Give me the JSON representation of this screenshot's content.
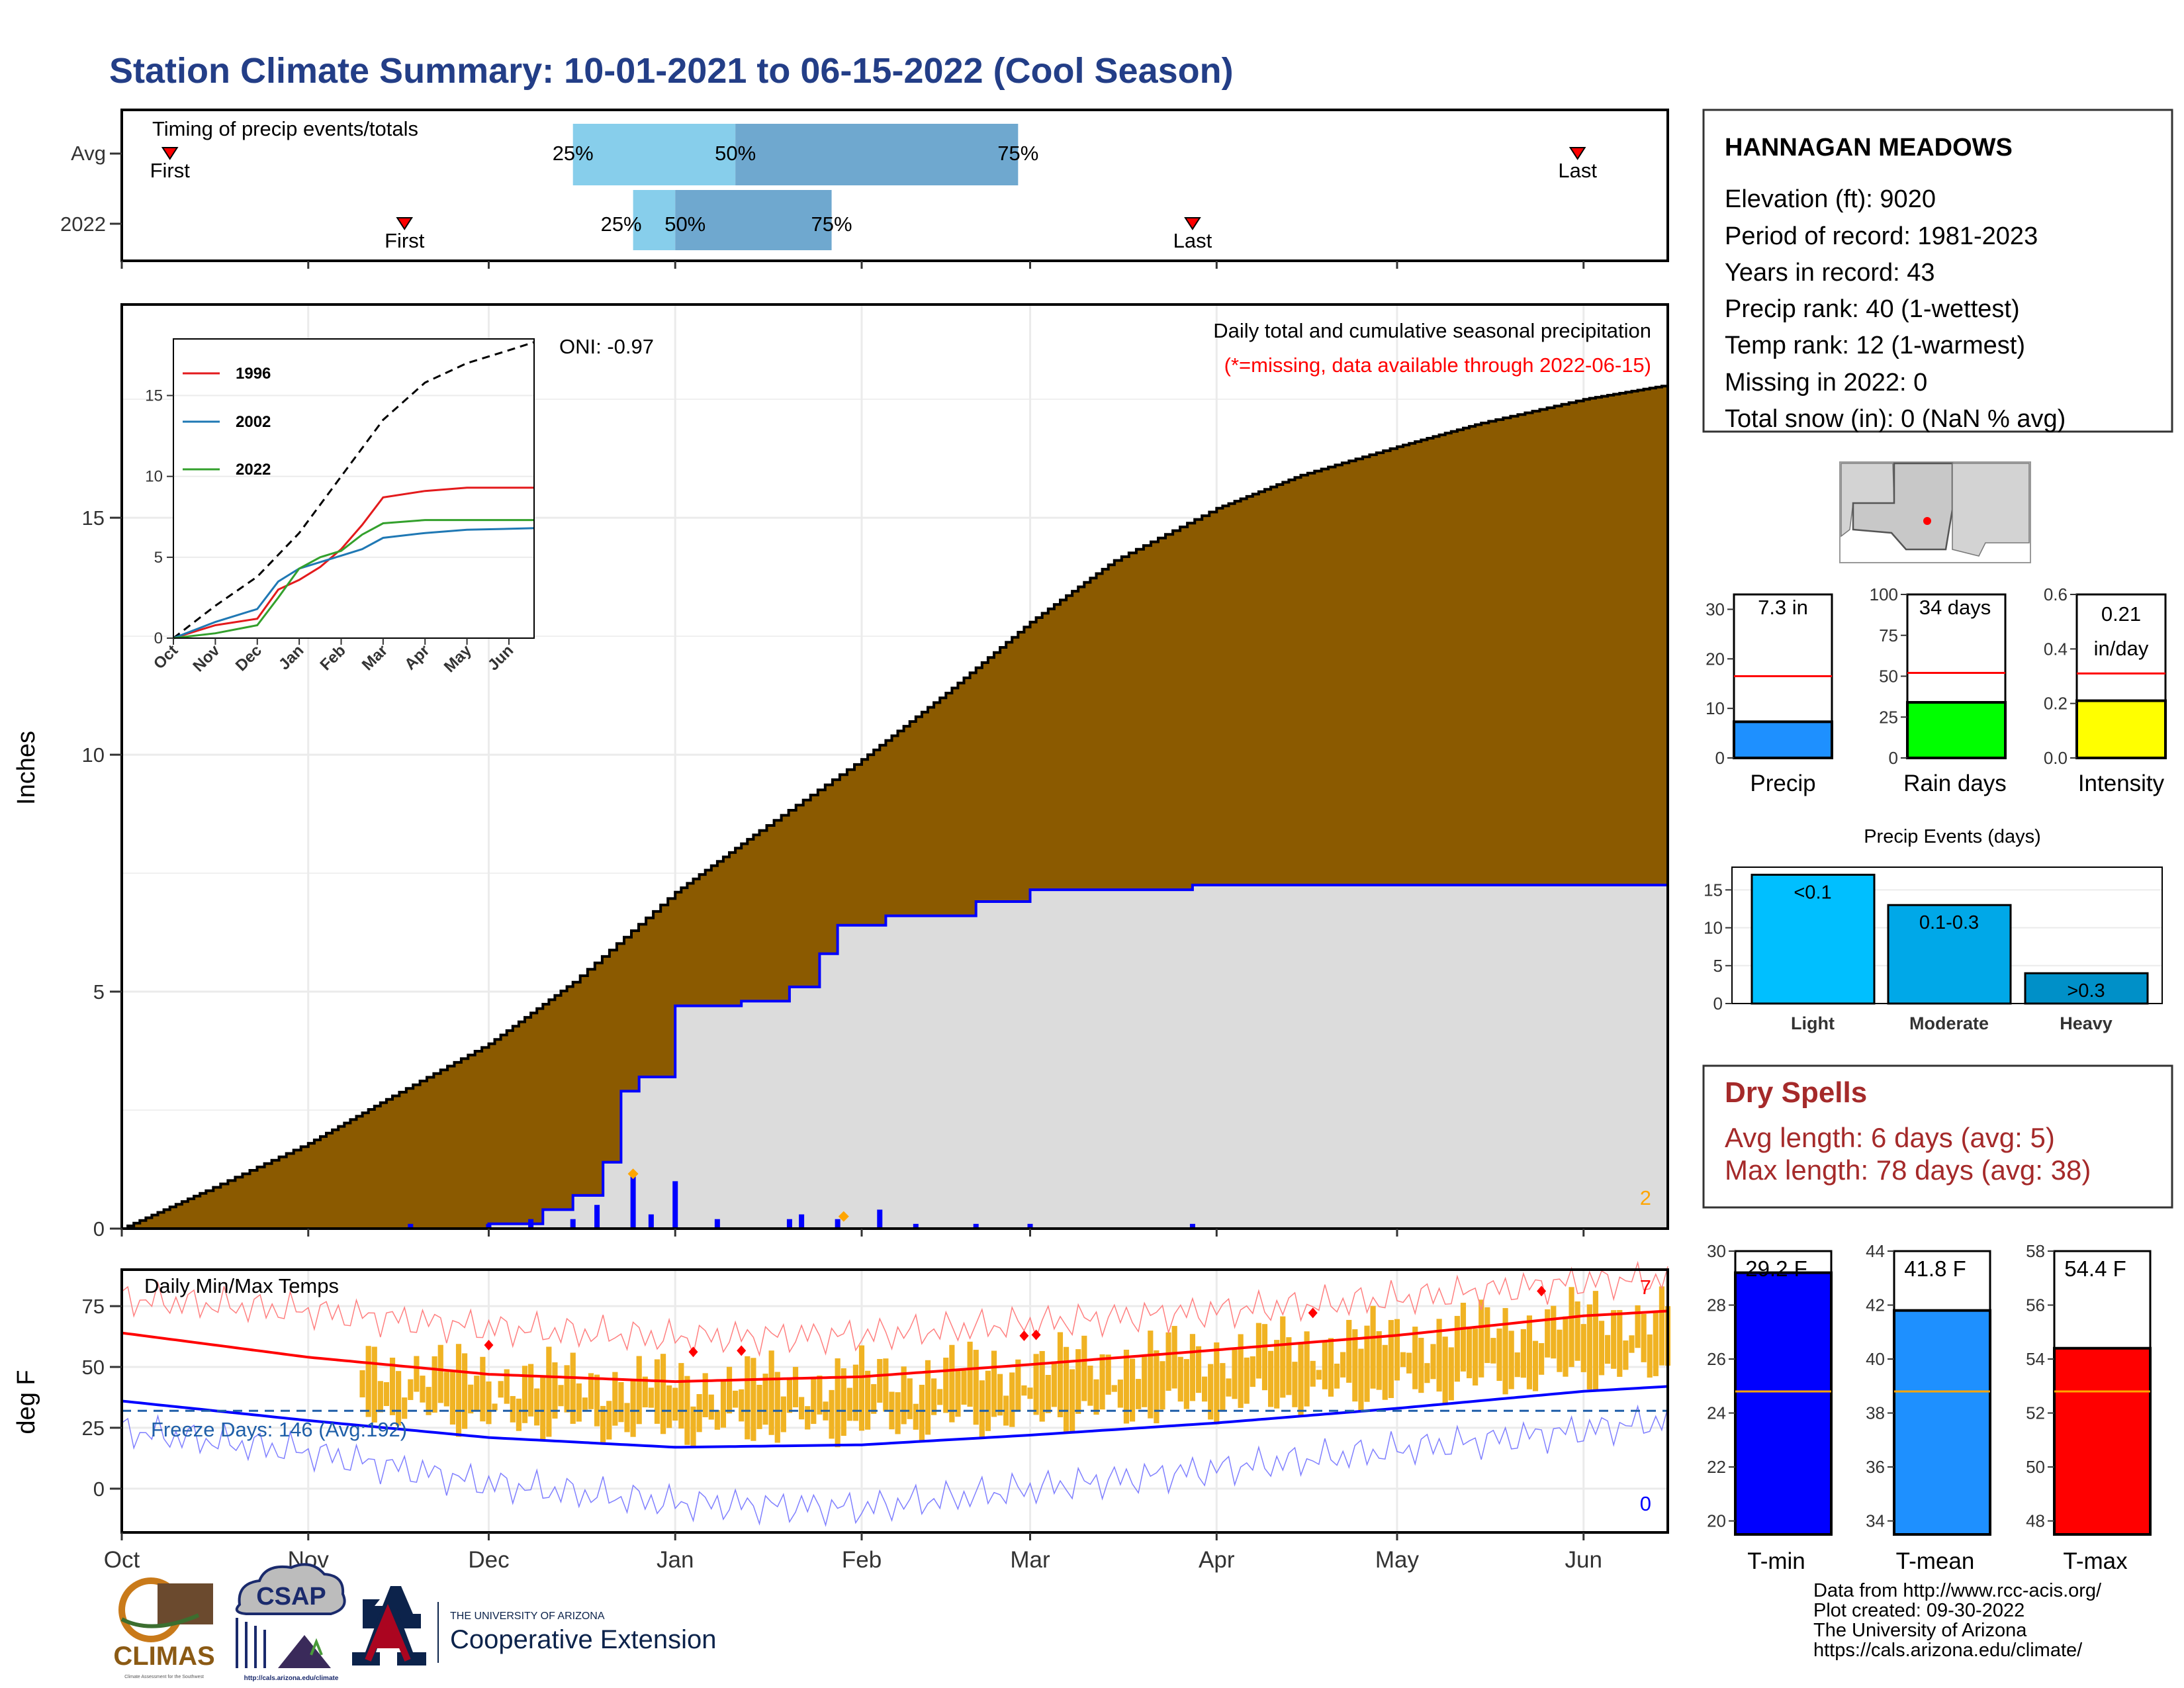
{
  "page_title": "Station Climate Summary: 10-01-2021 to 06-15-2022 (Cool Season)",
  "colors": {
    "title": "#233e87",
    "cum_fill": "#8b5a00",
    "cur_fill": "#dcdcdc",
    "cur_line": "#0000ff",
    "bar_light": "#87ceeb",
    "bar_dark": "#6fa8cf",
    "temp_bar": "#f0b323",
    "dry_spells": "#a52a2a"
  },
  "timing": {
    "title": "Timing of precip events/totals",
    "rows": [
      {
        "label": "Avg",
        "first_label": "First",
        "first_date": "2021-10-09",
        "last_label": "Last",
        "last_date": "2022-05-31",
        "q25_label": "25%",
        "q25_date": "2021-12-15",
        "q50_label": "50%",
        "q50_date": "2022-01-11",
        "q75_label": "75%",
        "q75_date": "2022-02-27"
      },
      {
        "label": "2022",
        "first_label": "First",
        "first_date": "2021-11-17",
        "last_label": "Last",
        "last_date": "2022-03-28",
        "q25_label": "25%",
        "q25_date": "2021-12-25",
        "q50_label": "50%",
        "q50_date": "2022-01-01",
        "q75_label": "75%",
        "q75_date": "2022-01-27"
      }
    ]
  },
  "precip_panel": {
    "ylabel": "Inches",
    "annotation_title": "Daily total and cumulative seasonal precipitation",
    "annotation_missing": "(*=missing, data available through 2022-06-15)",
    "oni": "ONI: -0.97",
    "count_label": "2"
  },
  "temp_panel": {
    "title": "Daily Min/Max Temps",
    "ylabel": "deg F",
    "freeze_label": "Freeze Days: 146 (Avg:192)",
    "count_top": "7",
    "count_bottom": "0"
  },
  "x_ticks": [
    "Oct",
    "Nov",
    "Dec",
    "Jan",
    "Feb",
    "Mar",
    "Apr",
    "May",
    "Jun"
  ],
  "inset": {
    "x_ticks": [
      "Oct",
      "Nov",
      "Dec",
      "Jan",
      "Feb",
      "Mar",
      "Apr",
      "May",
      "Jun"
    ],
    "legend": [
      "1996",
      "2002",
      "2022"
    ]
  },
  "station": {
    "name": "HANNAGAN MEADOWS",
    "lines": [
      "Elevation (ft): 9020",
      "Period of record: 1981-2023",
      "Years in record: 43",
      "Precip rank: 40 (1-wettest)",
      "Temp rank: 12 (1-warmest)",
      "Missing in 2022: 0",
      "Total snow (in): 0 (NaN % avg)"
    ]
  },
  "mini_bars": [
    {
      "name": "Precip",
      "value_label": "7.3 in",
      "value_label2": ""
    },
    {
      "name": "Rain days",
      "value_label": "34 days",
      "value_label2": ""
    },
    {
      "name": "Intensity",
      "value_label": "0.21",
      "value_label2": "in/day"
    }
  ],
  "precip_events": {
    "title": "Precip Events (days)"
  },
  "dry_spells": {
    "title": "Dry Spells",
    "avg_line": "Avg length: 6 days (avg: 5)",
    "max_line": "Max length: 78 days (avg: 38)"
  },
  "temp_bars": [
    {
      "name": "T-min",
      "value_label": "29.2 F"
    },
    {
      "name": "T-mean",
      "value_label": "41.8 F"
    },
    {
      "name": "T-max",
      "value_label": "54.4 F"
    }
  ],
  "footer_lines": [
    "Data from http://www.rcc-acis.org/",
    "Plot created: 09-30-2022",
    "The University of Arizona",
    "https://cals.arizona.edu/climate/"
  ],
  "logos": {
    "climas": "CLIMAS",
    "climas_sub": "Climate Assessment for the Southwest",
    "csap": "CSAP",
    "csap_url": "http://cals.arizona.edu/climate",
    "ua_small": "THE UNIVERSITY OF ARIZONA",
    "ua_big": "Cooperative Extension"
  },
  "chart_data": [
    {
      "type": "area",
      "title": "Daily total and cumulative seasonal precipitation",
      "ylabel": "Inches",
      "ylim": [
        0,
        19.5
      ],
      "x_domain": [
        "2021-10-01",
        "2022-06-15"
      ],
      "grid": true,
      "series": [
        {
          "name": "Cumulative average",
          "x": [
            "2021-10-01",
            "2021-10-15",
            "2021-11-01",
            "2021-11-15",
            "2021-12-01",
            "2021-12-15",
            "2022-01-01",
            "2022-01-15",
            "2022-02-01",
            "2022-02-15",
            "2022-03-01",
            "2022-03-15",
            "2022-04-01",
            "2022-04-15",
            "2022-05-01",
            "2022-05-15",
            "2022-06-01",
            "2022-06-15"
          ],
          "values": [
            0.0,
            0.8,
            1.8,
            2.8,
            3.9,
            5.2,
            7.1,
            8.4,
            9.9,
            11.3,
            12.8,
            14.1,
            15.2,
            15.9,
            16.5,
            17.0,
            17.5,
            17.8
          ]
        },
        {
          "name": "Cumulative 2022",
          "x": [
            "2021-10-01",
            "2021-12-01",
            "2021-12-10",
            "2021-12-15",
            "2021-12-20",
            "2021-12-23",
            "2021-12-26",
            "2022-01-01",
            "2022-01-12",
            "2022-01-20",
            "2022-01-25",
            "2022-01-28",
            "2022-02-05",
            "2022-02-20",
            "2022-03-01",
            "2022-03-28",
            "2022-06-15"
          ],
          "values": [
            0.0,
            0.1,
            0.4,
            0.7,
            1.4,
            2.9,
            3.2,
            4.7,
            4.8,
            5.1,
            5.8,
            6.4,
            6.6,
            6.9,
            7.15,
            7.25,
            7.25
          ]
        },
        {
          "name": "Daily precip",
          "x": [
            "2021-11-18",
            "2021-12-01",
            "2021-12-08",
            "2021-12-15",
            "2021-12-19",
            "2021-12-25",
            "2021-12-28",
            "2022-01-01",
            "2022-01-08",
            "2022-01-20",
            "2022-01-22",
            "2022-01-28",
            "2022-02-04",
            "2022-02-10",
            "2022-02-20",
            "2022-03-01",
            "2022-03-28"
          ],
          "values": [
            0.1,
            0.1,
            0.2,
            0.2,
            0.5,
            1.1,
            0.3,
            1.0,
            0.2,
            0.2,
            0.3,
            0.2,
            0.4,
            0.1,
            0.1,
            0.1,
            0.1
          ]
        }
      ]
    },
    {
      "type": "line",
      "title": "",
      "ylim": [
        0,
        18.5
      ],
      "x_ticks": [
        "Oct",
        "Nov",
        "Dec",
        "Jan",
        "Feb",
        "Mar",
        "Apr",
        "May",
        "Jun"
      ],
      "series": [
        {
          "name": "",
          "style": "dashed",
          "x": [
            0,
            1,
            2,
            3,
            4,
            5,
            6,
            7,
            8,
            8.6
          ],
          "values": [
            0,
            2,
            3.8,
            6.5,
            10,
            13.5,
            15.8,
            17,
            17.8,
            18.3
          ]
        },
        {
          "name": "1996",
          "x": [
            0,
            1,
            2,
            2.5,
            3,
            3.5,
            4,
            4.5,
            5,
            6,
            7,
            8.6
          ],
          "values": [
            0,
            0.8,
            1.2,
            3,
            3.6,
            4.4,
            5.5,
            7,
            8.7,
            9.1,
            9.3,
            9.3
          ]
        },
        {
          "name": "2002",
          "x": [
            0,
            1,
            2,
            2.5,
            3,
            3.5,
            4,
            4.5,
            5,
            6,
            7,
            8.6
          ],
          "values": [
            0,
            1,
            1.8,
            3.5,
            4.3,
            4.7,
            5.1,
            5.5,
            6.2,
            6.5,
            6.7,
            6.8
          ]
        },
        {
          "name": "2022",
          "x": [
            0,
            1,
            2,
            2.5,
            3,
            3.5,
            4,
            4.5,
            5,
            6,
            7,
            8.6
          ],
          "values": [
            0,
            0.3,
            0.8,
            2.5,
            4.3,
            5,
            5.4,
            6.4,
            7.1,
            7.3,
            7.3,
            7.3
          ]
        }
      ]
    },
    {
      "type": "line",
      "title": "Daily Min/Max Temps",
      "ylabel": "deg F",
      "ylim": [
        -18,
        90
      ],
      "x_domain": [
        "2021-10-01",
        "2022-06-15"
      ],
      "series": [
        {
          "name": "avg max",
          "x": [
            "2021-10-01",
            "2021-11-01",
            "2021-12-01",
            "2022-01-01",
            "2022-02-01",
            "2022-03-01",
            "2022-04-01",
            "2022-05-01",
            "2022-06-01",
            "2022-06-15"
          ],
          "values": [
            64,
            54,
            47,
            44,
            46,
            51,
            57,
            63,
            71,
            73
          ]
        },
        {
          "name": "avg min",
          "x": [
            "2021-10-01",
            "2021-11-01",
            "2021-12-01",
            "2022-01-01",
            "2022-02-01",
            "2022-03-01",
            "2022-04-01",
            "2022-05-01",
            "2022-06-01",
            "2022-06-15"
          ],
          "values": [
            36,
            28,
            21,
            17,
            18,
            22,
            27,
            33,
            40,
            42
          ]
        },
        {
          "name": "record max",
          "x": [
            "2021-10-01",
            "2021-11-01",
            "2021-12-01",
            "2022-01-01",
            "2022-02-01",
            "2022-03-01",
            "2022-04-01",
            "2022-05-01",
            "2022-06-01",
            "2022-06-15"
          ],
          "values": [
            78,
            73,
            66,
            62,
            63,
            68,
            73,
            78,
            85,
            86
          ]
        },
        {
          "name": "record min",
          "x": [
            "2021-10-01",
            "2021-11-01",
            "2021-12-01",
            "2022-01-01",
            "2022-02-01",
            "2022-03-01",
            "2022-04-01",
            "2022-05-01",
            "2022-06-01",
            "2022-06-15"
          ],
          "values": [
            24,
            15,
            2,
            -6,
            -8,
            0,
            8,
            16,
            24,
            28
          ]
        },
        {
          "name": "freeze line",
          "values": [
            32
          ]
        }
      ]
    },
    {
      "type": "bar",
      "categories": [
        "Precip"
      ],
      "values": [
        7.3
      ],
      "reference": [
        16.5
      ],
      "ylim": [
        0,
        33
      ],
      "ticks": [
        0,
        10,
        20,
        30
      ]
    },
    {
      "type": "bar",
      "categories": [
        "Rain days"
      ],
      "values": [
        34
      ],
      "reference": [
        52
      ],
      "ylim": [
        0,
        100
      ],
      "ticks": [
        0,
        25,
        50,
        75,
        100
      ]
    },
    {
      "type": "bar",
      "categories": [
        "Intensity"
      ],
      "values": [
        0.21
      ],
      "reference": [
        0.31
      ],
      "ylim": [
        0,
        0.6
      ],
      "ticks": [
        "0.0",
        "0.2",
        "0.4",
        "0.6"
      ]
    },
    {
      "type": "bar",
      "title": "Precip Events (days)",
      "categories": [
        "Light",
        "Moderate",
        "Heavy"
      ],
      "labels": [
        "<0.1",
        "0.1-0.3",
        ">0.3"
      ],
      "values": [
        17,
        13,
        4
      ],
      "ylim": [
        0,
        18
      ],
      "ticks": [
        0,
        5,
        10,
        15
      ]
    },
    {
      "type": "bar",
      "categories": [
        "T-min"
      ],
      "values": [
        29.2
      ],
      "reference": [
        24.8
      ],
      "ylim": [
        19.5,
        30
      ],
      "ticks": [
        20,
        22,
        24,
        26,
        28,
        30
      ]
    },
    {
      "type": "bar",
      "categories": [
        "T-mean"
      ],
      "values": [
        41.8
      ],
      "reference": [
        38.8
      ],
      "ylim": [
        33.5,
        44
      ],
      "ticks": [
        34,
        36,
        38,
        40,
        42,
        44
      ]
    },
    {
      "type": "bar",
      "categories": [
        "T-max"
      ],
      "values": [
        54.4
      ],
      "reference": [
        52.8
      ],
      "ylim": [
        47.5,
        58
      ],
      "ticks": [
        48,
        50,
        52,
        54,
        56,
        58
      ]
    }
  ]
}
